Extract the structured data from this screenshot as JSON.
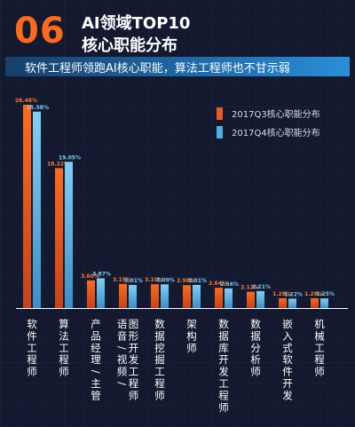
{
  "header": {
    "number": "06",
    "title_line1": "AI领域TOP10",
    "title_line2": "核心职能分布",
    "subtitle": "软件工程师领跑AI核心职能，算法工程师也不甘示弱"
  },
  "colors": {
    "accent": "#ff6a1a",
    "series_q3": "#f05a1e",
    "series_q4": "#4fb0e0",
    "banner": "#1f6aa8",
    "background": "#13192f"
  },
  "chart_data": {
    "type": "bar",
    "categories": [
      "软件工程师",
      "算法工程师",
      "产品经理/主管",
      "语音/视频/图形开发工程师",
      "数据挖掘工程师",
      "架构师",
      "数据库开发工程师",
      "数据分析师",
      "嵌入式软件开发",
      "机械工程师"
    ],
    "category_lines": [
      [
        "软件工程师"
      ],
      [
        "算法工程师"
      ],
      [
        "产品经理/主管"
      ],
      [
        "语音/视频/",
        "图形开发工程师"
      ],
      [
        "数据挖掘工程师"
      ],
      [
        "架构师"
      ],
      [
        "数据库开发工程师"
      ],
      [
        "数据分析师"
      ],
      [
        "嵌入式软件开发"
      ],
      [
        "机械工程师"
      ]
    ],
    "series": [
      {
        "name": "2017Q3核心职能分布",
        "values": [
          26.48,
          18.22,
          3.6,
          3.15,
          3.1,
          2.98,
          2.64,
          2.12,
          1.28,
          1.28
        ],
        "labels": [
          "26.48%",
          "18.22%",
          "3.60%",
          "3.15%",
          "3.10%",
          "2.98%",
          "2.64%",
          "2.12%",
          "1.28%",
          "1.28%"
        ]
      },
      {
        "name": "2017Q4核心职能分布",
        "values": [
          25.58,
          19.05,
          3.87,
          3.01,
          3.09,
          3.01,
          2.56,
          2.21,
          1.22,
          1.25
        ],
        "labels": [
          "25.58%",
          "19.05%",
          "3.87%",
          "3.01%",
          "3.09%",
          "3.01%",
          "2.56%",
          "2.21%",
          "1.22%",
          "1.25%"
        ]
      }
    ],
    "legend": "right",
    "grid": false
  }
}
